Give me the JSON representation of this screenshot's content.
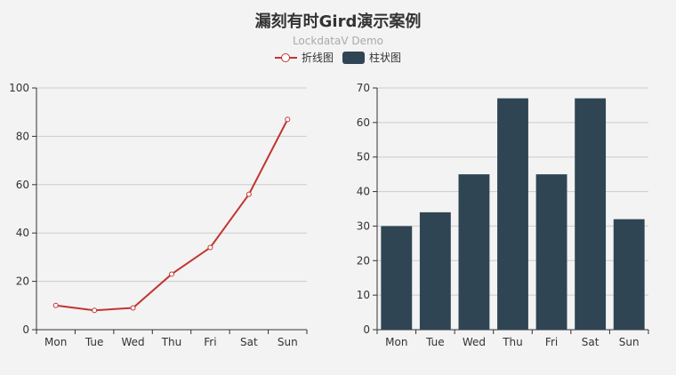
{
  "title": "漏刻有时Gird演示案例",
  "subtitle": "LockdataV Demo",
  "legend": [
    {
      "name": "折线图",
      "icon": "line-marker-icon"
    },
    {
      "name": "柱状图",
      "icon": "bar-rect-icon"
    }
  ],
  "colors": {
    "line": "#c23531",
    "bar": "#2f4554",
    "grid": "#cccccc",
    "axis": "#333333"
  },
  "chart_data": [
    {
      "type": "line",
      "categories": [
        "Mon",
        "Tue",
        "Wed",
        "Thu",
        "Fri",
        "Sat",
        "Sun"
      ],
      "series": [
        {
          "name": "折线图",
          "values": [
            10,
            8,
            9,
            23,
            34,
            56,
            87
          ]
        }
      ],
      "ylim": [
        0,
        100
      ],
      "yticks": [
        0,
        20,
        40,
        60,
        80,
        100
      ],
      "grid": true
    },
    {
      "type": "bar",
      "categories": [
        "Mon",
        "Tue",
        "Wed",
        "Thu",
        "Fri",
        "Sat",
        "Sun"
      ],
      "series": [
        {
          "name": "柱状图",
          "values": [
            30,
            34,
            45,
            67,
            45,
            67,
            32
          ]
        }
      ],
      "ylim": [
        0,
        70
      ],
      "yticks": [
        0,
        10,
        20,
        30,
        40,
        50,
        60,
        70
      ],
      "grid": true
    }
  ]
}
